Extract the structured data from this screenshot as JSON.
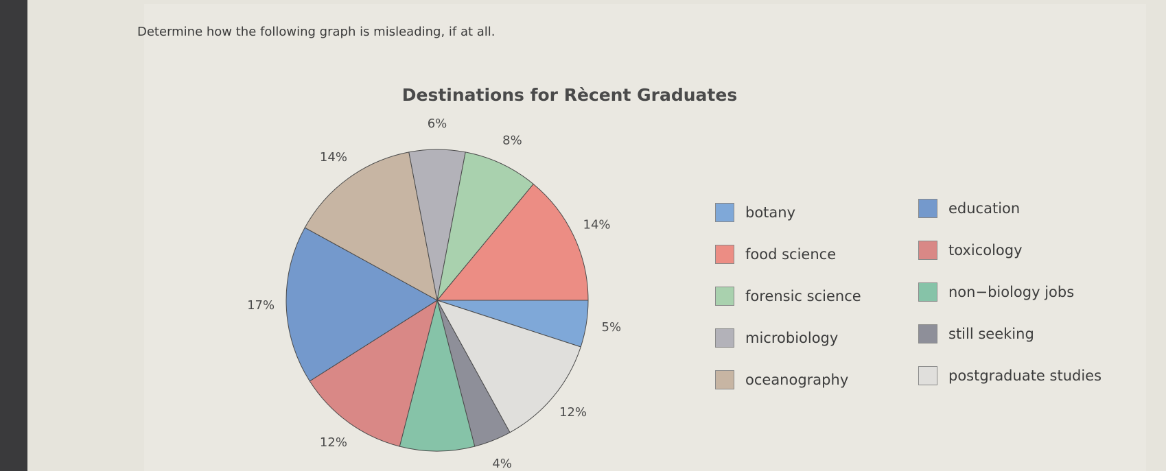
{
  "question": "Determine how the following graph is misleading, if at all.",
  "chart_data": {
    "type": "pie",
    "title": "Destinations for Rècent Graduates",
    "slices": [
      {
        "label": "botany",
        "value": 5,
        "display": "5%",
        "color": "#7fa8d8"
      },
      {
        "label": "postgraduate studies",
        "value": 12,
        "display": "12%",
        "color": "#e0dfdc"
      },
      {
        "label": "still seeking",
        "value": 4,
        "display": "4%",
        "color": "#8e8f99"
      },
      {
        "label": "non−biology jobs",
        "value": 8,
        "display": "8%",
        "color": "#86c3a8"
      },
      {
        "label": "toxicology",
        "value": 12,
        "display": "12%",
        "color": "#d98886"
      },
      {
        "label": "education",
        "value": 17,
        "display": "17%",
        "color": "#7499cc"
      },
      {
        "label": "oceanography",
        "value": 14,
        "display": "14%",
        "color": "#c7b5a3"
      },
      {
        "label": "microbiology",
        "value": 6,
        "display": "6%",
        "color": "#b3b2b9"
      },
      {
        "label": "forensic science",
        "value": 8,
        "display": "8%",
        "color": "#a9d1ae"
      },
      {
        "label": "food science",
        "value": 14,
        "display": "14%",
        "color": "#ec8d84"
      }
    ],
    "legend_left": [
      {
        "label": "botany",
        "color": "#7fa8d8"
      },
      {
        "label": "food science",
        "color": "#ec8d84"
      },
      {
        "label": "forensic science",
        "color": "#a9d1ae"
      },
      {
        "label": "microbiology",
        "color": "#b3b2b9"
      },
      {
        "label": "oceanography",
        "color": "#c7b5a3"
      }
    ],
    "legend_right": [
      {
        "label": "education",
        "color": "#7499cc"
      },
      {
        "label": "toxicology",
        "color": "#d98886"
      },
      {
        "label": "non−biology jobs",
        "color": "#86c3a8"
      },
      {
        "label": "still seeking",
        "color": "#8e8f99"
      },
      {
        "label": "postgraduate studies",
        "color": "#e0dfdc"
      }
    ]
  }
}
